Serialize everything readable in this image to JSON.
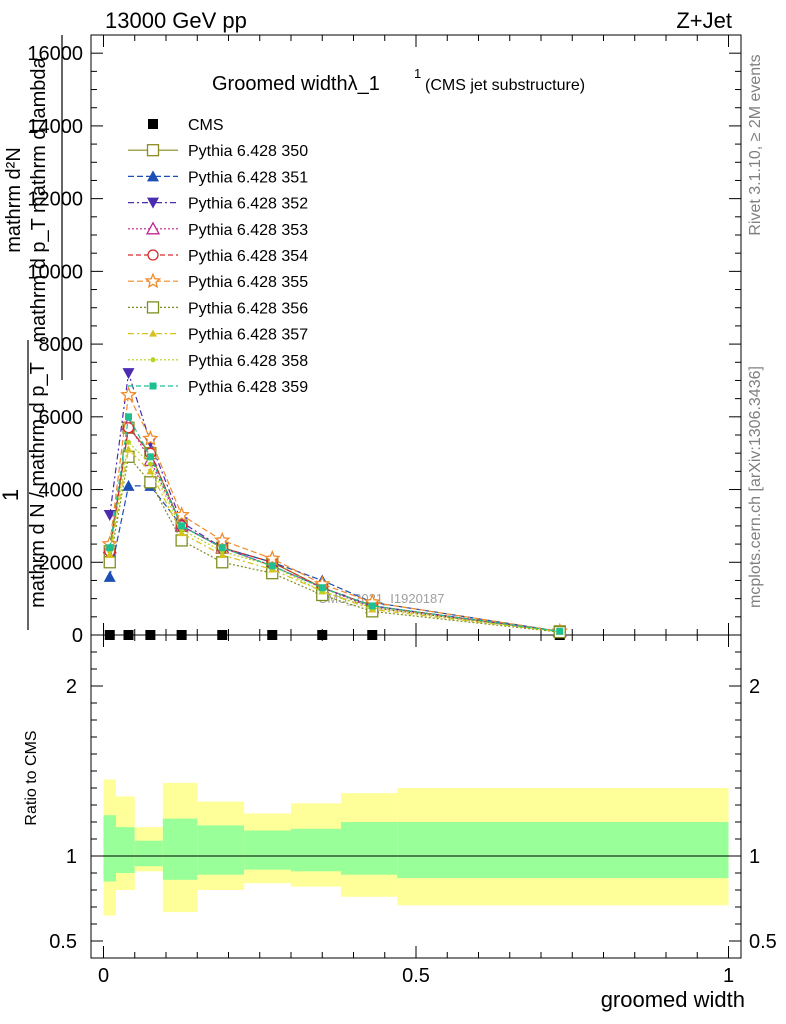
{
  "header": {
    "left": "13000 GeV pp",
    "right": "Z+Jet"
  },
  "side_text": {
    "rivet": "Rivet 3.1.10, ≥ 2M events",
    "mcplots": "mcplots.cern.ch [arXiv:1306.3436]"
  },
  "watermark": "CMS_2021_I1920187",
  "chart_data": [
    {
      "type": "line",
      "title_main": "Groomed widthλ_1",
      "title_sup": "1",
      "title_sub": "(CMS jet substructure)",
      "ylabel_top_lines": [
        "mathrm d²N",
        "mathrm d p_T mathrm d lambda"
      ],
      "ylabel_numerator": "1",
      "ylabel_denominator": "mathrm d N / mathrm d p_T",
      "ylim": [
        0,
        16500
      ],
      "y_ticks": [
        0,
        2000,
        4000,
        6000,
        8000,
        10000,
        12000,
        14000,
        16000
      ],
      "y_tick_labels": [
        "0",
        "2000",
        "4000",
        "6000",
        "8000",
        "10000",
        "12000",
        "14000",
        "16000"
      ],
      "xlim": [
        -0.02,
        1.02
      ],
      "x": [
        0.01,
        0.04,
        0.075,
        0.125,
        0.19,
        0.27,
        0.35,
        0.43,
        0.73
      ],
      "legend": "top-left",
      "series": [
        {
          "name": "CMS",
          "color": "#000000",
          "marker": "filled-square",
          "dash": "none",
          "values": [
            0,
            0,
            0,
            0,
            0,
            0,
            0,
            0,
            0
          ]
        },
        {
          "name": "Pythia 6.428 350",
          "color": "#8a8a1f",
          "marker": "open-square",
          "dash": "solid",
          "values": [
            2300,
            5700,
            5000,
            3000,
            2400,
            2000,
            1300,
            800,
            100
          ]
        },
        {
          "name": "Pythia 6.428 351",
          "color": "#1c4fb5",
          "marker": "filled-triangle-up",
          "dash": "6,3",
          "values": [
            1600,
            4100,
            4100,
            3000,
            2400,
            2000,
            1500,
            900,
            100
          ]
        },
        {
          "name": "Pythia 6.428 352",
          "color": "#4b2bb0",
          "marker": "filled-triangle-down",
          "dash": "6,3,2,3",
          "values": [
            3300,
            7200,
            5300,
            3100,
            2400,
            1900,
            1300,
            800,
            100
          ]
        },
        {
          "name": "Pythia 6.428 353",
          "color": "#c2258f",
          "marker": "open-triangle-up",
          "dash": "2,2",
          "values": [
            2400,
            5800,
            4800,
            3000,
            2400,
            1900,
            1300,
            750,
            100
          ]
        },
        {
          "name": "Pythia 6.428 354",
          "color": "#d42a2a",
          "marker": "open-circle",
          "dash": "5,3",
          "values": [
            2300,
            5700,
            5000,
            3000,
            2400,
            2000,
            1300,
            800,
            100
          ]
        },
        {
          "name": "Pythia 6.428 355",
          "color": "#f08a2a",
          "marker": "open-star",
          "dash": "6,3",
          "values": [
            2500,
            6600,
            5400,
            3300,
            2600,
            2100,
            1400,
            900,
            100
          ]
        },
        {
          "name": "Pythia 6.428 356",
          "color": "#7f8f1f",
          "marker": "open-square",
          "dash": "2,2",
          "values": [
            2000,
            4900,
            4200,
            2600,
            2000,
            1700,
            1100,
            650,
            80
          ]
        },
        {
          "name": "Pythia 6.428 357",
          "color": "#d4c21f",
          "marker": "filled-triangle-up-small",
          "dash": "6,3,2,3",
          "values": [
            2200,
            5100,
            4500,
            2800,
            2200,
            1800,
            1200,
            700,
            90
          ]
        },
        {
          "name": "Pythia 6.428 358",
          "color": "#b5d41f",
          "marker": "filled-dot",
          "dash": "2,2",
          "values": [
            2300,
            5300,
            4700,
            2900,
            2300,
            1900,
            1200,
            750,
            90
          ]
        },
        {
          "name": "Pythia 6.428 359",
          "color": "#1fbf94",
          "marker": "filled-square-small",
          "dash": "5,3",
          "values": [
            2400,
            6000,
            4900,
            3000,
            2400,
            1900,
            1300,
            800,
            100
          ]
        }
      ]
    },
    {
      "type": "area",
      "ylabel": "Ratio to CMS",
      "xlabel": "groomed width",
      "ylim": [
        0.4,
        2.3
      ],
      "y_ticks": [
        0.5,
        1,
        2
      ],
      "y_tick_labels": [
        "0.5",
        "1",
        "2"
      ],
      "x_ticks": [
        0,
        0.5,
        1
      ],
      "x_tick_labels": [
        "0",
        "0.5",
        "1"
      ],
      "reference": 1,
      "bins": [
        {
          "x0": 0.0,
          "x1": 0.02,
          "inner": [
            0.85,
            1.24
          ],
          "outer": [
            0.65,
            1.45
          ]
        },
        {
          "x0": 0.02,
          "x1": 0.05,
          "inner": [
            0.9,
            1.17
          ],
          "outer": [
            0.8,
            1.35
          ]
        },
        {
          "x0": 0.05,
          "x1": 0.095,
          "inner": [
            0.94,
            1.09
          ],
          "outer": [
            0.91,
            1.17
          ]
        },
        {
          "x0": 0.095,
          "x1": 0.15,
          "inner": [
            0.86,
            1.22
          ],
          "outer": [
            0.67,
            1.43
          ]
        },
        {
          "x0": 0.15,
          "x1": 0.225,
          "inner": [
            0.89,
            1.18
          ],
          "outer": [
            0.8,
            1.32
          ]
        },
        {
          "x0": 0.225,
          "x1": 0.3,
          "inner": [
            0.92,
            1.15
          ],
          "outer": [
            0.84,
            1.25
          ]
        },
        {
          "x0": 0.3,
          "x1": 0.38,
          "inner": [
            0.91,
            1.16
          ],
          "outer": [
            0.82,
            1.31
          ]
        },
        {
          "x0": 0.38,
          "x1": 0.47,
          "inner": [
            0.89,
            1.2
          ],
          "outer": [
            0.76,
            1.37
          ]
        },
        {
          "x0": 0.47,
          "x1": 1.0,
          "inner": [
            0.87,
            1.2
          ],
          "outer": [
            0.71,
            1.4
          ]
        }
      ],
      "colors": {
        "inner": "#99ff99",
        "outer": "#ffff99"
      }
    }
  ]
}
